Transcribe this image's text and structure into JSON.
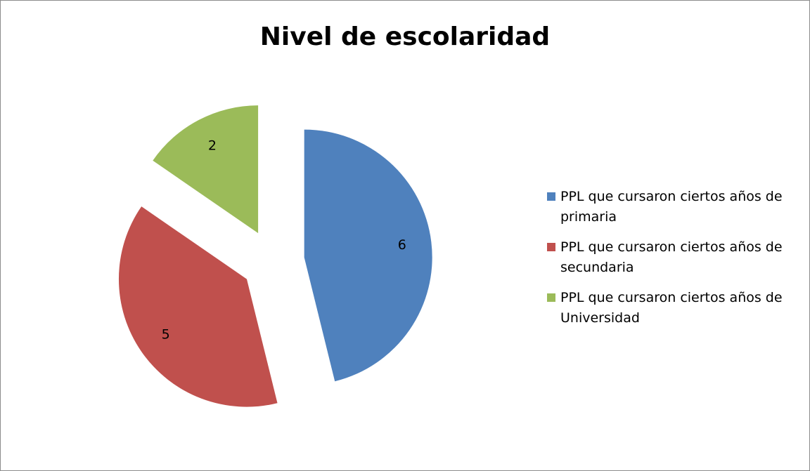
{
  "chart_data": {
    "type": "pie",
    "title": "Nivel de escolaridad",
    "categories": [
      "PPL que cursaron ciertos años de primaria",
      "PPL que cursaron ciertos años de secundaria",
      "PPL que cursaron ciertos años de Universidad"
    ],
    "values": [
      6,
      5,
      2
    ],
    "colors": [
      "#4f81bd",
      "#c0504d",
      "#9bbb59"
    ],
    "exploded": true,
    "legend": "right",
    "data_labels": true
  }
}
